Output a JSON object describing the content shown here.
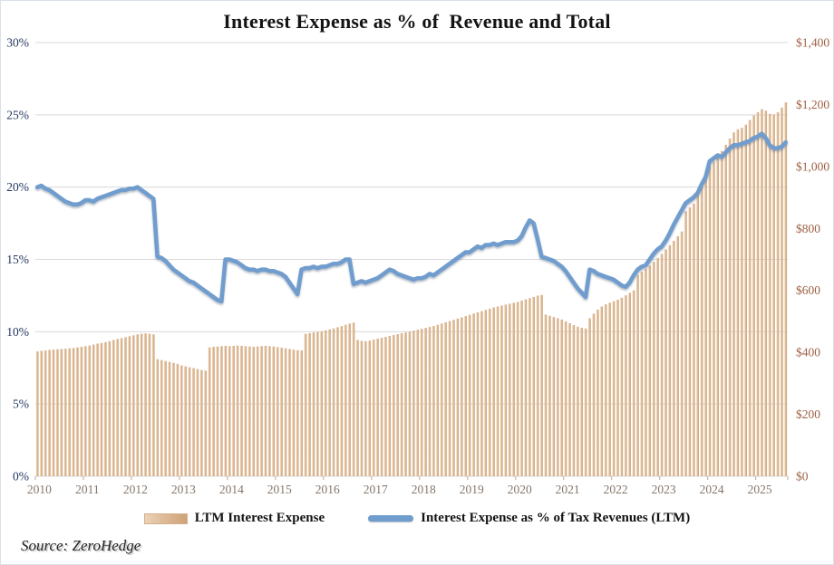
{
  "title": "Interest Expense as % of  Revenue and Total",
  "source_note": "Source: ZeroHedge",
  "legend": [
    {
      "label": "LTM Interest Expense",
      "swatch": "bar-swatch",
      "color": "#dbb691"
    },
    {
      "label": "Interest Expense as % of Tax Revenues (LTM)",
      "swatch": "line-swatch",
      "color": "#6f9dcd"
    }
  ],
  "colors": {
    "bar_fill": "#dbb691",
    "bar_fill_light": "#ebd2b7",
    "bar_fill_dark": "#cea377",
    "line": "#6f9dcd",
    "left_axis_text": "#24375f",
    "right_axis_text": "#9d5f43",
    "x_axis_text": "#85766a",
    "gridline": "#d9d9d9",
    "title_text": "#141414"
  },
  "chart_data": {
    "type": "combo-bar-line",
    "x_start": "2010-01",
    "x_end": "2025-08",
    "x_frequency": "monthly",
    "x_tick_years": [
      2010,
      2011,
      2012,
      2013,
      2014,
      2015,
      2016,
      2017,
      2018,
      2019,
      2020,
      2021,
      2022,
      2023,
      2024,
      2025
    ],
    "left_axis": {
      "min": 0,
      "max": 30,
      "tick_step": 5,
      "ticks": [
        "0%",
        "5%",
        "10%",
        "15%",
        "20%",
        "25%",
        "30%"
      ]
    },
    "right_axis": {
      "min": 0,
      "max": 1400,
      "tick_step": 200,
      "ticks": [
        "$0",
        "$200",
        "$400",
        "$600",
        "$800",
        "$1,000",
        "$1,200",
        "$1,400"
      ]
    },
    "grid": "horizontal-only",
    "legend_position": "bottom-center",
    "series": [
      {
        "name": "LTM Interest Expense",
        "type": "bar",
        "axis": "right",
        "units": "$B",
        "values": [
          403,
          405,
          406,
          408,
          409,
          410,
          411,
          412,
          413,
          414,
          416,
          418,
          420,
          422,
          425,
          428,
          430,
          433,
          436,
          440,
          443,
          446,
          449,
          452,
          455,
          458,
          460,
          461,
          460,
          458,
          378,
          375,
          372,
          369,
          366,
          363,
          358,
          355,
          352,
          349,
          346,
          343,
          341,
          416,
          418,
          419,
          420,
          421,
          420,
          421,
          422,
          421,
          420,
          419,
          418,
          419,
          420,
          421,
          420,
          419,
          417,
          415,
          413,
          411,
          409,
          407,
          406,
          460,
          462,
          464,
          466,
          468,
          471,
          474,
          477,
          481,
          485,
          489,
          493,
          496,
          440,
          437,
          436,
          438,
          441,
          444,
          447,
          450,
          453,
          456,
          459,
          462,
          464,
          467,
          470,
          473,
          476,
          479,
          482,
          485,
          489,
          493,
          497,
          501,
          505,
          509,
          513,
          517,
          521,
          525,
          529,
          533,
          537,
          541,
          545,
          548,
          551,
          554,
          557,
          560,
          563,
          567,
          571,
          575,
          579,
          583,
          585,
          522,
          518,
          514,
          510,
          506,
          500,
          494,
          488,
          483,
          479,
          477,
          510,
          525,
          538,
          548,
          555,
          560,
          565,
          570,
          576,
          584,
          592,
          600,
          650,
          660,
          670,
          680,
          692,
          705,
          718,
          732,
          746,
          760,
          775,
          790,
          856,
          868,
          880,
          910,
          940,
          970,
          1000,
          1015,
          1030,
          1050,
          1070,
          1090,
          1110,
          1120,
          1125,
          1135,
          1150,
          1165,
          1175,
          1185,
          1180,
          1170,
          1168,
          1175,
          1190,
          1207
        ]
      },
      {
        "name": "Interest Expense as % of Tax Revenues (LTM)",
        "type": "line",
        "axis": "left",
        "units": "%",
        "values": [
          20.0,
          20.1,
          19.9,
          19.8,
          19.6,
          19.4,
          19.2,
          19.0,
          18.9,
          18.8,
          18.8,
          18.9,
          19.1,
          19.1,
          19.0,
          19.2,
          19.3,
          19.4,
          19.5,
          19.6,
          19.7,
          19.8,
          19.8,
          19.9,
          19.9,
          20.0,
          19.8,
          19.6,
          19.4,
          19.2,
          15.2,
          15.1,
          14.9,
          14.6,
          14.3,
          14.1,
          13.9,
          13.7,
          13.5,
          13.4,
          13.2,
          13.0,
          12.8,
          12.6,
          12.4,
          12.2,
          12.1,
          15.0,
          15.0,
          14.9,
          14.8,
          14.6,
          14.4,
          14.3,
          14.3,
          14.2,
          14.3,
          14.3,
          14.2,
          14.2,
          14.1,
          14.0,
          13.8,
          13.4,
          13.0,
          12.6,
          14.3,
          14.4,
          14.4,
          14.5,
          14.4,
          14.5,
          14.5,
          14.6,
          14.7,
          14.7,
          14.8,
          15.0,
          15.0,
          13.3,
          13.4,
          13.5,
          13.4,
          13.5,
          13.6,
          13.7,
          13.9,
          14.1,
          14.3,
          14.2,
          14.0,
          13.9,
          13.8,
          13.7,
          13.6,
          13.7,
          13.7,
          13.8,
          14.0,
          13.9,
          14.1,
          14.3,
          14.5,
          14.7,
          14.9,
          15.1,
          15.3,
          15.5,
          15.5,
          15.7,
          15.9,
          15.8,
          16.0,
          16.0,
          16.1,
          16.0,
          16.1,
          16.2,
          16.2,
          16.2,
          16.3,
          16.6,
          17.2,
          17.7,
          17.5,
          16.4,
          15.2,
          15.1,
          15.0,
          14.9,
          14.7,
          14.5,
          14.2,
          13.8,
          13.4,
          13.0,
          12.7,
          12.4,
          14.3,
          14.2,
          14.0,
          13.9,
          13.8,
          13.7,
          13.6,
          13.4,
          13.2,
          13.1,
          13.4,
          13.9,
          14.3,
          14.5,
          14.6,
          15.0,
          15.4,
          15.7,
          15.9,
          16.3,
          16.8,
          17.4,
          17.9,
          18.4,
          18.9,
          19.1,
          19.3,
          19.6,
          20.2,
          20.7,
          21.8,
          22.0,
          22.2,
          22.1,
          22.4,
          22.7,
          22.9,
          22.9,
          23.0,
          23.1,
          23.2,
          23.4,
          23.5,
          23.7,
          23.4,
          22.9,
          22.7,
          22.7,
          22.8,
          23.1
        ]
      }
    ]
  }
}
